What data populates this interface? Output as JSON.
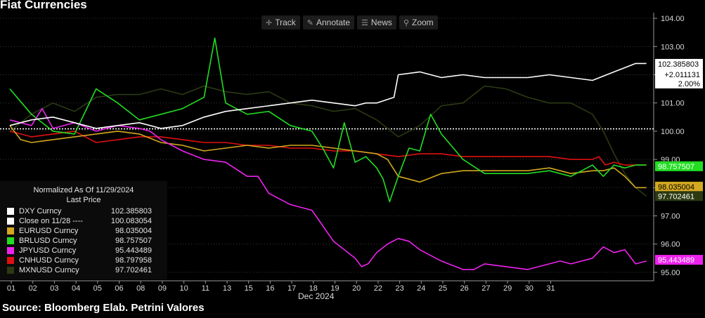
{
  "title": "Fiat Currencies",
  "toolbar": [
    {
      "label": "Track",
      "icon": "crosshair-icon",
      "glyph": "✛"
    },
    {
      "label": "Annotate",
      "icon": "pencil-icon",
      "glyph": "✎"
    },
    {
      "label": "News",
      "icon": "news-icon",
      "glyph": "☰"
    },
    {
      "label": "Zoom",
      "icon": "zoom-icon",
      "glyph": "⚲"
    }
  ],
  "legend": {
    "header1": "Normalized As Of 11/29/2024",
    "header2": "Last Price",
    "items": [
      {
        "name": "DXY Curncy",
        "value": "102.385803",
        "color": "#ffffff"
      },
      {
        "name": "Close on 11/28 ----",
        "value": "100.083054",
        "color": "#ffffff"
      },
      {
        "name": "EURUSD Curncy",
        "value": "98.035004",
        "color": "#d4a820"
      },
      {
        "name": "BRLUSD Curncy",
        "value": "98.757507",
        "color": "#22dd22"
      },
      {
        "name": "JPYUSD Curncy",
        "value": "95.443489",
        "color": "#ee22ee"
      },
      {
        "name": "CNHUSD Curncy",
        "value": "98.797958",
        "color": "#e01010"
      },
      {
        "name": "MXNUSD Curncy",
        "value": "97.702461",
        "color": "#2b3a12"
      }
    ]
  },
  "source": "Source: Bloomberg Elab. Petrini Valores",
  "chart_data": {
    "type": "line",
    "title": "Fiat Currencies",
    "xlabel": "Dec 2024",
    "x_tick_labels": [
      "01",
      "02",
      "03",
      "04",
      "05",
      "06",
      "08",
      "09",
      "10",
      "11",
      "13",
      "15",
      "16",
      "17",
      "18",
      "19",
      "20",
      "22",
      "23",
      "24",
      "25",
      "26",
      "27",
      "29",
      "30",
      "31"
    ],
    "y_tick_labels": [
      "95.00",
      "96.00",
      "97.00",
      "98.00",
      "99.00",
      "100.00",
      "101.00",
      "102.00",
      "103.00",
      "104.00"
    ],
    "ylim": [
      94.7,
      104.2
    ],
    "grid": true,
    "legend_position": "bottom-left",
    "reference_line": {
      "name": "Close on 11/28",
      "value": 100.083054
    },
    "series": [
      {
        "name": "DXY Curncy",
        "color": "#ffffff",
        "last": 102.385803,
        "change_label": "+2.011131",
        "change_pct_label": "2.00%",
        "x": [
          0,
          1,
          2,
          3,
          4,
          5,
          6,
          7,
          8,
          9,
          10,
          11,
          12,
          13,
          14,
          15,
          16,
          16.5,
          17,
          17.8,
          18,
          19,
          20,
          21,
          22,
          23,
          24,
          25,
          26,
          27,
          28,
          29,
          29.5
        ],
        "y": [
          100.2,
          100.4,
          100.5,
          100.3,
          100.1,
          100.2,
          100.3,
          100.1,
          100.2,
          100.5,
          100.7,
          100.8,
          100.9,
          101.0,
          101.1,
          101.0,
          100.9,
          101.0,
          101.0,
          101.2,
          102.0,
          102.1,
          101.9,
          102.0,
          101.9,
          101.9,
          101.9,
          102.0,
          101.9,
          101.8,
          102.1,
          102.4,
          102.4
        ]
      },
      {
        "name": "EURUSD Curncy",
        "color": "#d4a820",
        "last": 98.035004,
        "x": [
          0,
          0.5,
          1,
          2,
          3,
          4,
          5,
          6,
          7,
          8,
          9,
          10,
          11,
          12,
          13,
          14,
          15,
          16,
          17,
          17.5,
          18,
          18.5,
          19,
          20,
          21,
          22,
          23,
          24,
          25,
          26,
          27,
          27.5,
          28,
          28.5,
          29,
          29.5
        ],
        "y": [
          100.2,
          99.7,
          99.6,
          99.7,
          99.8,
          99.9,
          100.0,
          99.9,
          99.6,
          99.5,
          99.3,
          99.4,
          99.5,
          99.4,
          99.5,
          99.5,
          99.4,
          99.3,
          99.2,
          99.0,
          98.4,
          98.3,
          98.2,
          98.5,
          98.6,
          98.6,
          98.6,
          98.6,
          98.7,
          98.5,
          98.6,
          98.6,
          98.7,
          98.4,
          98.0,
          98.0
        ]
      },
      {
        "name": "BRLUSD Curncy",
        "color": "#22dd22",
        "last": 98.757507,
        "x": [
          0,
          1,
          2,
          3,
          4,
          5,
          6,
          7,
          8,
          9,
          9.5,
          10,
          11,
          12,
          13,
          14,
          14.5,
          15,
          15.5,
          16,
          16.5,
          17,
          17.3,
          17.6,
          18,
          18.5,
          19,
          19.5,
          20,
          21,
          22,
          23,
          24,
          25,
          26,
          26.5,
          27,
          27.5,
          28,
          28.5,
          29,
          29.5
        ],
        "y": [
          101.5,
          100.6,
          100.0,
          99.9,
          101.5,
          101.0,
          100.4,
          100.6,
          100.8,
          101.2,
          103.3,
          101.0,
          100.6,
          100.7,
          100.2,
          100.0,
          99.4,
          98.7,
          100.3,
          98.9,
          99.1,
          98.7,
          98.3,
          97.5,
          98.4,
          99.4,
          99.3,
          100.6,
          99.9,
          99.0,
          98.5,
          98.5,
          98.5,
          98.6,
          98.4,
          98.6,
          98.8,
          98.4,
          98.8,
          98.7,
          98.8,
          98.8
        ]
      },
      {
        "name": "JPYUSD Curncy",
        "color": "#ee22ee",
        "last": 95.443489,
        "x": [
          0,
          1,
          1.5,
          2,
          3,
          4,
          5,
          6,
          6.5,
          7,
          8,
          9,
          10,
          11,
          11.5,
          12,
          13,
          14,
          15,
          16,
          16.3,
          16.6,
          17,
          17.5,
          18,
          18.5,
          19,
          20,
          21,
          21.5,
          22,
          23,
          24,
          25,
          25.5,
          26,
          27,
          27.5,
          28,
          28.5,
          29,
          29.5
        ],
        "y": [
          100.4,
          100.2,
          100.8,
          100.1,
          100.3,
          100.0,
          100.2,
          100.1,
          100.0,
          99.7,
          99.3,
          99.0,
          98.9,
          98.4,
          98.4,
          97.8,
          97.4,
          97.2,
          96.1,
          95.5,
          95.2,
          95.3,
          95.7,
          96.0,
          96.2,
          96.1,
          95.8,
          95.4,
          95.1,
          95.1,
          95.3,
          95.2,
          95.1,
          95.3,
          95.4,
          95.3,
          95.5,
          95.9,
          95.7,
          95.8,
          95.3,
          95.4
        ]
      },
      {
        "name": "CNHUSD Curncy",
        "color": "#e01010",
        "last": 98.797958,
        "x": [
          0,
          1,
          2,
          3,
          4,
          5,
          6,
          7,
          8,
          9,
          10,
          11,
          12,
          13,
          14,
          15,
          16,
          17,
          18,
          19,
          20,
          21,
          22,
          23,
          24,
          25,
          26,
          27,
          27.3,
          27.6,
          28,
          28.5,
          29,
          29.5
        ],
        "y": [
          100.0,
          99.8,
          99.9,
          100.0,
          99.6,
          99.7,
          99.8,
          99.8,
          99.7,
          99.6,
          99.6,
          99.5,
          99.5,
          99.4,
          99.4,
          99.3,
          99.3,
          99.2,
          99.1,
          99.2,
          99.2,
          99.1,
          99.1,
          99.1,
          99.1,
          99.1,
          99.0,
          99.0,
          99.1,
          98.8,
          98.9,
          98.8,
          98.8,
          98.8
        ]
      },
      {
        "name": "MXNUSD Curncy",
        "color": "#2b3a12",
        "last": 97.702461,
        "x": [
          0,
          1,
          2,
          3,
          4,
          5,
          6,
          7,
          8,
          9,
          10,
          11,
          12,
          13,
          14,
          15,
          16,
          17,
          18,
          19,
          20,
          21,
          22,
          23,
          24,
          25,
          26,
          27,
          27.5,
          28,
          28.5,
          29,
          29.5
        ],
        "y": [
          100.0,
          100.6,
          101.0,
          100.7,
          101.2,
          101.3,
          101.3,
          101.5,
          101.3,
          101.6,
          101.4,
          101.3,
          101.4,
          101.0,
          100.9,
          100.7,
          100.8,
          100.4,
          99.8,
          100.2,
          100.9,
          101.0,
          101.6,
          101.5,
          101.2,
          101.0,
          101.0,
          100.6,
          100.0,
          99.2,
          98.5,
          98.0,
          97.7
        ]
      }
    ]
  }
}
